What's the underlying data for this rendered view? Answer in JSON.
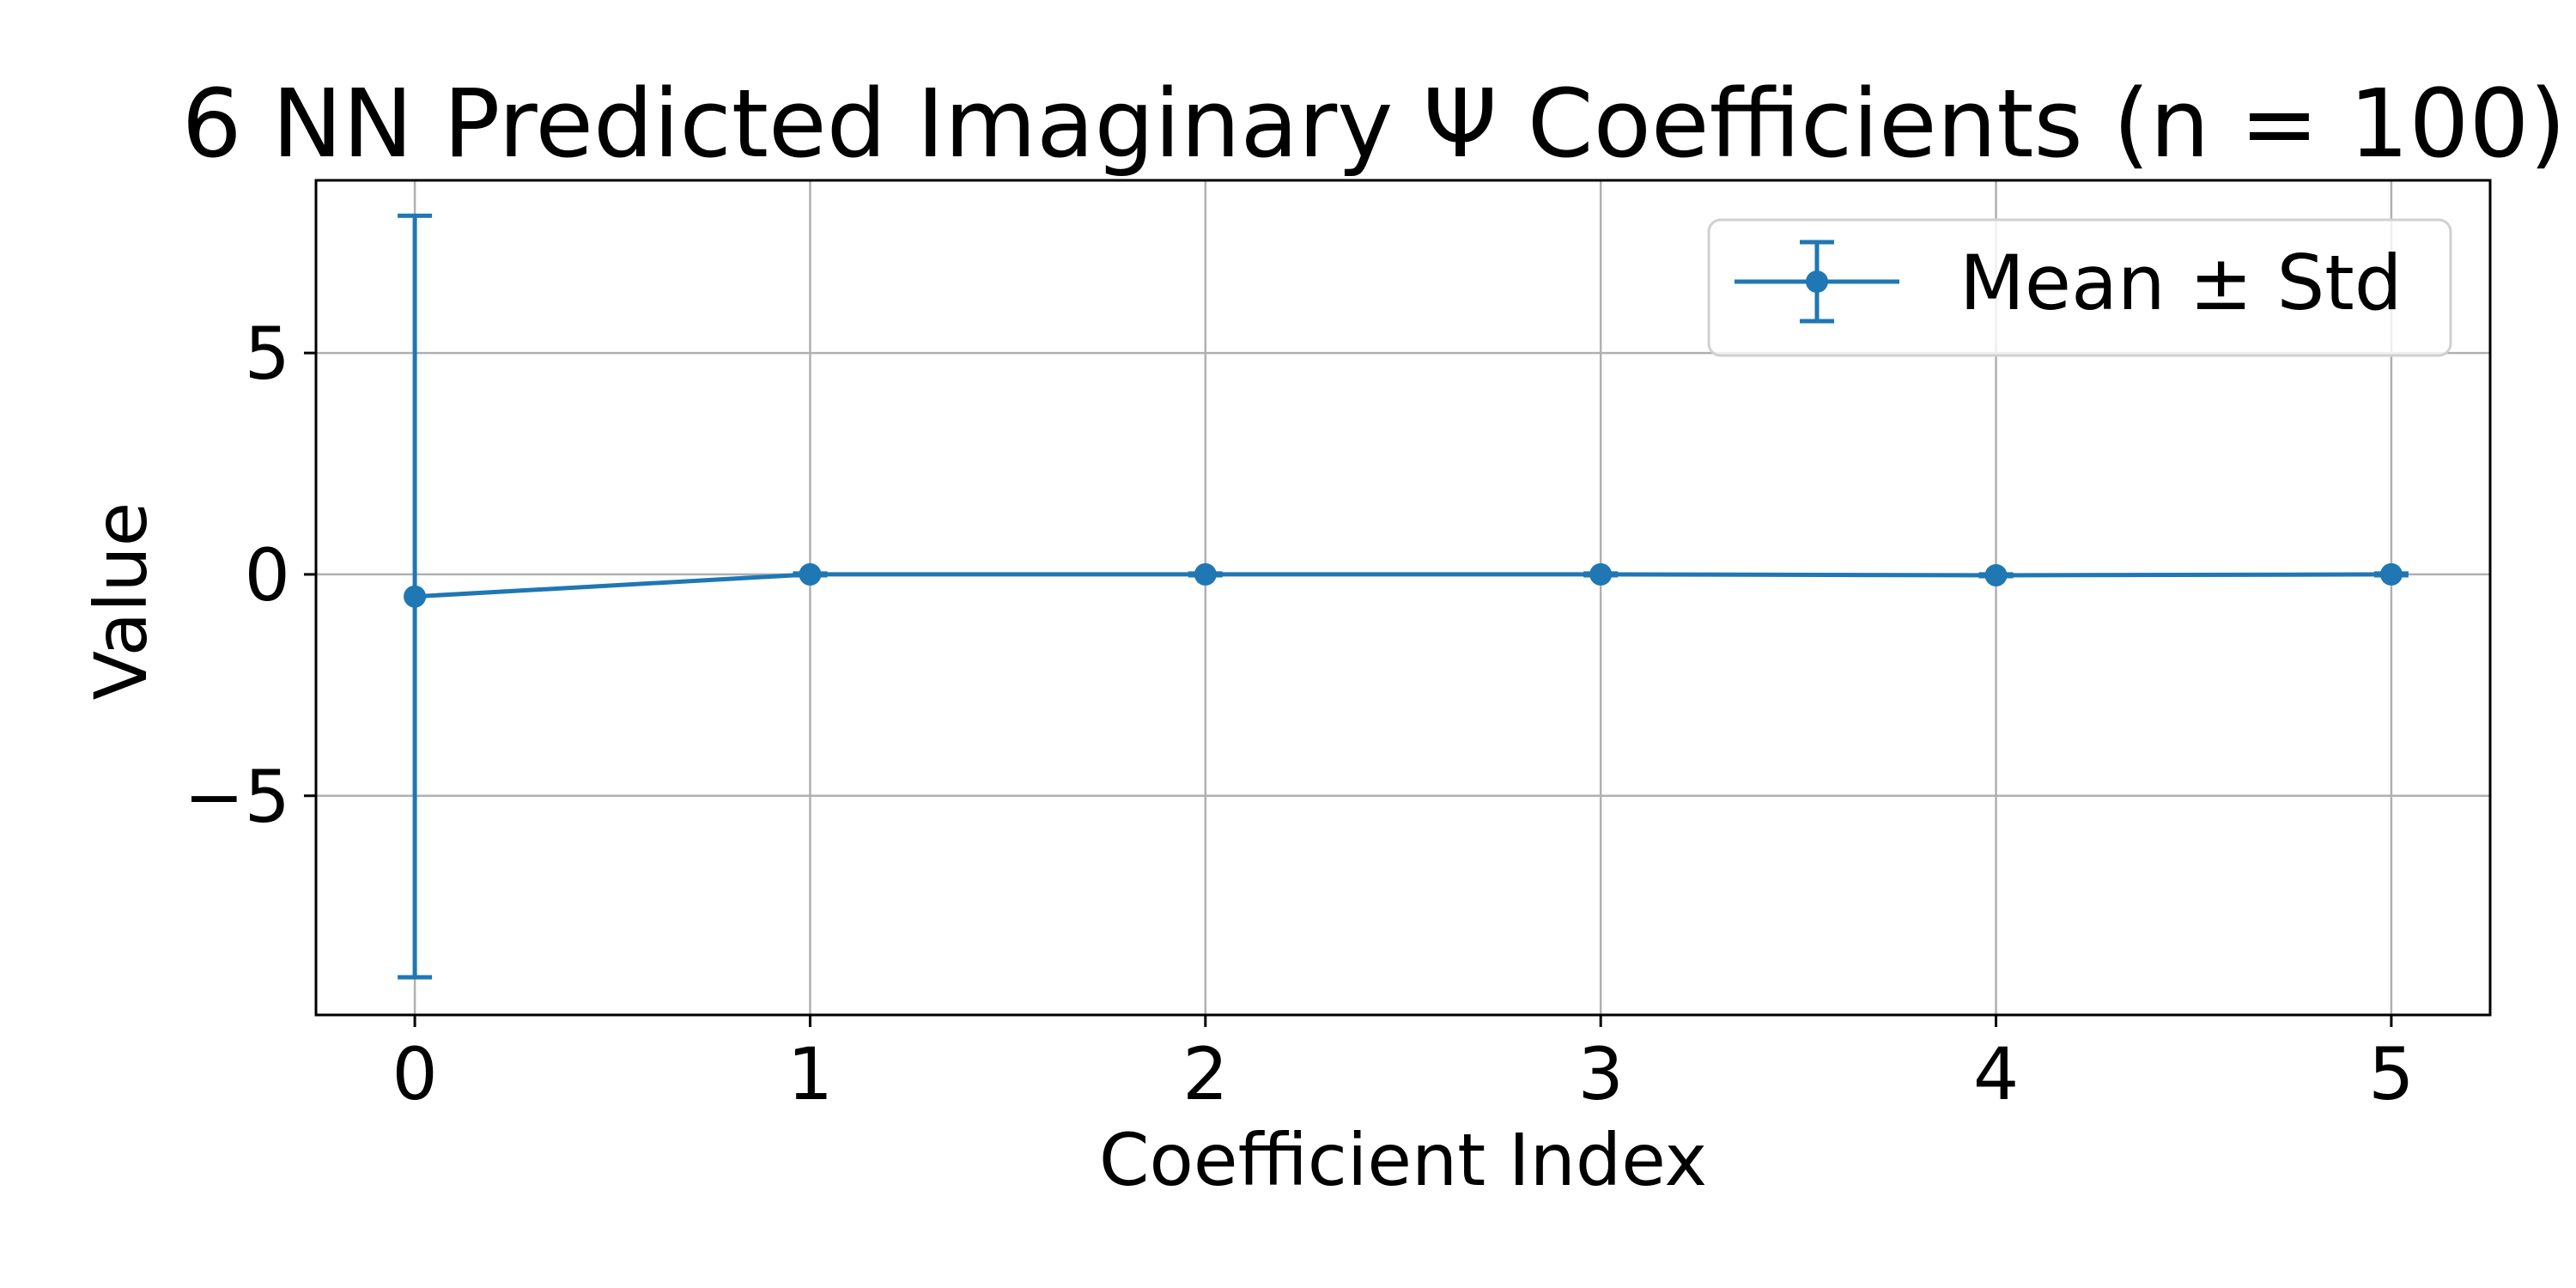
{
  "chart_data": {
    "type": "line",
    "title": "6 NN Predicted Imaginary Ψ Coefficients (n = 100)",
    "xlabel": "Coefficient Index",
    "ylabel": "Value",
    "x": [
      0,
      1,
      2,
      3,
      4,
      5
    ],
    "x_ticks": [
      "0",
      "1",
      "2",
      "3",
      "4",
      "5"
    ],
    "y_ticks": [
      5,
      0,
      -5
    ],
    "y_tick_labels": [
      "5",
      "0",
      "−5"
    ],
    "xlim": [
      -0.25,
      5.25
    ],
    "ylim": [
      -9.95,
      8.9
    ],
    "grid": true,
    "legend_position": "top-right",
    "series": [
      {
        "name": "Mean ± Std",
        "color": "#1f77b4",
        "marker": "circle",
        "values": [
          -0.5,
          0.0,
          0.0,
          0.0,
          -0.02,
          0.0
        ],
        "error": [
          8.6,
          0.02,
          0.02,
          0.02,
          0.02,
          0.02
        ]
      }
    ]
  }
}
